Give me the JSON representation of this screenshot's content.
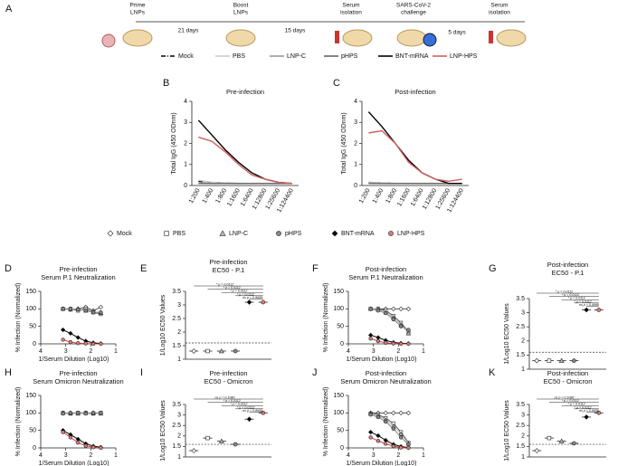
{
  "timeline": {
    "panel": "A",
    "steps": [
      {
        "label": [
          "Prime",
          "LNPs"
        ]
      },
      {
        "label": [
          "Boost",
          "LNPs"
        ]
      },
      {
        "label": [
          "Serum",
          "isolation"
        ]
      },
      {
        "label": [
          "SARS-CoV-2",
          "challenge"
        ]
      },
      {
        "label": [
          "Serum",
          "isolation"
        ]
      }
    ],
    "intervals": [
      "21 days",
      "15 days",
      "5 days"
    ]
  },
  "chart_data": [
    {
      "type": "line",
      "panel": "B",
      "title": "Pre-infection",
      "ylabel": "Total IgG (450 ODnm)",
      "legend": true,
      "categories": [
        "1:200",
        "1:400",
        "1:800",
        "1:1600",
        "1:6400",
        "1:12800",
        "1:25600",
        "1:124400"
      ],
      "ylim": [
        0,
        4
      ],
      "yticks": [
        0,
        1,
        2,
        3,
        4
      ],
      "series": [
        {
          "name": "Mock",
          "color": "#000000",
          "dash": "dashdot",
          "values": [
            0.2,
            0.15,
            0.12,
            0.1,
            0.1,
            0.1,
            0.1,
            0.1
          ]
        },
        {
          "name": "PBS",
          "color": "#cccccc",
          "values": [
            0.25,
            0.15,
            0.12,
            0.1,
            0.1,
            0.1,
            0.1,
            0.1
          ]
        },
        {
          "name": "LNP-C",
          "color": "#999999",
          "values": [
            0.12,
            0.1,
            0.1,
            0.1,
            0.1,
            0.1,
            0.1,
            0.1
          ]
        },
        {
          "name": "pHPS",
          "color": "#666666",
          "values": [
            0.1,
            0.1,
            0.1,
            0.1,
            0.1,
            0.1,
            0.1,
            0.1
          ]
        },
        {
          "name": "BNT-mRNA",
          "color": "#000000",
          "values": [
            3.1,
            2.4,
            1.7,
            1.1,
            0.6,
            0.3,
            0.15,
            0.1
          ]
        },
        {
          "name": "LNP-HPS",
          "color": "#d06060",
          "values": [
            2.3,
            2.1,
            1.6,
            1.0,
            0.5,
            0.3,
            0.15,
            0.1
          ]
        }
      ]
    },
    {
      "type": "line",
      "panel": "C",
      "title": "Post-infection",
      "ylabel": "Total IgG (450 ODnm)",
      "legend": false,
      "categories": [
        "1:200",
        "1:400",
        "1:800",
        "1:1600",
        "1:6400",
        "1:12800",
        "1:25600",
        "1:124400"
      ],
      "ylim": [
        0,
        4
      ],
      "yticks": [
        0,
        1,
        2,
        3,
        4
      ],
      "series": [
        {
          "color": "#000000",
          "dash": "dashdot",
          "values": [
            0.15,
            0.12,
            0.1,
            0.1,
            0.1,
            0.1,
            0.1,
            0.1
          ]
        },
        {
          "color": "#cccccc",
          "values": [
            0.15,
            0.12,
            0.1,
            0.1,
            0.1,
            0.1,
            0.1,
            0.1
          ]
        },
        {
          "color": "#999999",
          "values": [
            0.12,
            0.1,
            0.1,
            0.1,
            0.1,
            0.1,
            0.1,
            0.1
          ]
        },
        {
          "color": "#666666",
          "values": [
            0.1,
            0.1,
            0.1,
            0.1,
            0.1,
            0.1,
            0.1,
            0.1
          ]
        },
        {
          "color": "#000000",
          "values": [
            3.5,
            2.8,
            2.0,
            1.2,
            0.6,
            0.3,
            0.1,
            0.1
          ]
        },
        {
          "color": "#d06060",
          "values": [
            2.5,
            2.6,
            2.0,
            1.1,
            0.6,
            0.3,
            0.2,
            0.3
          ]
        }
      ]
    },
    {
      "type": "scatter",
      "panel": "D",
      "title": "Pre-infection",
      "subtitle": "Serum P.1 Neutralization",
      "xlabel": "1/Serum Dilution (Log10)",
      "ylabel": "% Infection (Normalized)",
      "legend": true,
      "x": [
        3.11,
        2.81,
        2.51,
        2.2,
        1.9,
        1.6
      ],
      "xlim": [
        4,
        1
      ],
      "xticks": [
        4,
        3,
        2,
        1
      ],
      "ylim": [
        0,
        150
      ],
      "yticks": [
        0,
        50,
        100,
        150
      ],
      "series": [
        {
          "name": "Mock",
          "color": "#ffffff",
          "marker": "diamond",
          "values": [
            100,
            98,
            100,
            105,
            95,
            105
          ]
        },
        {
          "name": "PBS",
          "color": "#ffffff",
          "marker": "square",
          "values": [
            100,
            100,
            95,
            100,
            90,
            85
          ]
        },
        {
          "name": "LNP-C",
          "color": "#bbbbbb",
          "marker": "triangle",
          "values": [
            100,
            98,
            100,
            95,
            92,
            88
          ]
        },
        {
          "name": "pHPS",
          "color": "#888888",
          "marker": "circle",
          "values": [
            100,
            100,
            98,
            95,
            90,
            90
          ]
        },
        {
          "name": "BNT-mRNA",
          "color": "#000000",
          "marker": "diamond",
          "values": [
            40,
            30,
            18,
            8,
            3,
            1
          ]
        },
        {
          "name": "LNP-HPS",
          "color": "#e07a7a",
          "marker": "circle",
          "values": [
            12,
            5,
            2,
            1,
            0,
            0
          ]
        }
      ]
    },
    {
      "type": "strip",
      "panel": "E",
      "title": "Pre-infection",
      "subtitle": "EC50 - P.1",
      "ylabel": "1/Log10 EC50 Values",
      "ylim": [
        1,
        3.5
      ],
      "yticks": [
        1,
        1.5,
        2,
        2.5,
        3,
        3.5
      ],
      "threshold": 1.6,
      "annotations": [
        "* p = 0.0112",
        "* p = 0.0112",
        "* p = 0.0112",
        "* p = 0.0112",
        "ns p = 0.9999"
      ],
      "series": [
        {
          "color": "#ffffff",
          "marker": "diamond",
          "values": [
            1.3
          ]
        },
        {
          "color": "#ffffff",
          "marker": "square",
          "values": [
            1.3
          ]
        },
        {
          "color": "#bbbbbb",
          "marker": "triangle",
          "values": [
            1.3
          ]
        },
        {
          "color": "#888888",
          "marker": "circle",
          "values": [
            1.3
          ]
        },
        {
          "color": "#000000",
          "marker": "diamond",
          "values": [
            3.1
          ]
        },
        {
          "color": "#e07a7a",
          "marker": "circle",
          "values": [
            3.1
          ]
        }
      ]
    },
    {
      "type": "scatter",
      "panel": "F",
      "title": "Post-infection",
      "subtitle": "Serum P.1 Neutralization",
      "xlabel": "1/Serum Dilution (Log10)",
      "ylabel": "% Infection (Normalized)",
      "legend": false,
      "x": [
        3.11,
        2.81,
        2.51,
        2.2,
        1.9,
        1.6
      ],
      "xlim": [
        4,
        1
      ],
      "xticks": [
        4,
        3,
        2,
        1
      ],
      "ylim": [
        0,
        150
      ],
      "yticks": [
        0,
        50,
        100,
        150
      ],
      "series": [
        {
          "color": "#ffffff",
          "marker": "diamond",
          "values": [
            100,
            100,
            100,
            100,
            100,
            100
          ]
        },
        {
          "color": "#ffffff",
          "marker": "square",
          "values": [
            100,
            100,
            95,
            80,
            60,
            35
          ]
        },
        {
          "color": "#bbbbbb",
          "marker": "triangle",
          "values": [
            100,
            98,
            90,
            75,
            55,
            30
          ]
        },
        {
          "color": "#888888",
          "marker": "circle",
          "values": [
            100,
            95,
            88,
            70,
            50,
            40
          ]
        },
        {
          "color": "#000000",
          "marker": "diamond",
          "values": [
            25,
            18,
            10,
            4,
            2,
            1
          ]
        },
        {
          "color": "#e07a7a",
          "marker": "circle",
          "values": [
            15,
            8,
            3,
            1,
            0,
            0
          ]
        }
      ]
    },
    {
      "type": "strip",
      "panel": "G",
      "title": "Post-infection",
      "subtitle": "EC50 - P.1",
      "ylabel": "1/Log10 EC50 Values",
      "ylim": [
        1,
        3.5
      ],
      "yticks": [
        1,
        1.5,
        2,
        2.5,
        3,
        3.5
      ],
      "threshold": 1.6,
      "annotations": [
        "* p = 0.0112",
        "* p = 0.0112",
        "* p = 0.0112",
        "* p = 0.0112",
        "ns p = 0.9999"
      ],
      "series": [
        {
          "color": "#ffffff",
          "marker": "diamond",
          "values": [
            1.3
          ]
        },
        {
          "color": "#ffffff",
          "marker": "square",
          "values": [
            1.3
          ]
        },
        {
          "color": "#bbbbbb",
          "marker": "triangle",
          "values": [
            1.3
          ]
        },
        {
          "color": "#888888",
          "marker": "circle",
          "values": [
            1.3
          ]
        },
        {
          "color": "#000000",
          "marker": "diamond",
          "values": [
            3.1
          ]
        },
        {
          "color": "#e07a7a",
          "marker": "circle",
          "values": [
            3.1
          ]
        }
      ]
    },
    {
      "type": "scatter",
      "panel": "H",
      "title": "Pre-infection",
      "subtitle": "Serum Omicron Neutralization",
      "xlabel": "1/Serum Dilution (Log10)",
      "ylabel": "% Infection (Normalized)",
      "legend": false,
      "x": [
        3.11,
        2.81,
        2.51,
        2.2,
        1.9,
        1.6
      ],
      "xlim": [
        4,
        1
      ],
      "xticks": [
        4,
        3,
        2,
        1
      ],
      "ylim": [
        0,
        150
      ],
      "yticks": [
        0,
        50,
        100,
        150
      ],
      "series": [
        {
          "color": "#ffffff",
          "marker": "diamond",
          "values": [
            100,
            100,
            100,
            100,
            100,
            100
          ]
        },
        {
          "color": "#ffffff",
          "marker": "square",
          "values": [
            100,
            98,
            100,
            100,
            98,
            100
          ]
        },
        {
          "color": "#bbbbbb",
          "marker": "triangle",
          "values": [
            100,
            100,
            98,
            100,
            100,
            98
          ]
        },
        {
          "color": "#888888",
          "marker": "circle",
          "values": [
            98,
            100,
            100,
            98,
            100,
            100
          ]
        },
        {
          "color": "#000000",
          "marker": "diamond",
          "values": [
            50,
            38,
            25,
            12,
            5,
            2
          ]
        },
        {
          "color": "#e07a7a",
          "marker": "circle",
          "values": [
            45,
            30,
            15,
            6,
            2,
            0
          ]
        }
      ]
    },
    {
      "type": "strip",
      "panel": "I",
      "title": "Pre-infection",
      "subtitle": "EC50 - Omicron",
      "ylabel": "1/Log10 EC50 Values",
      "ylim": [
        1,
        3.5
      ],
      "yticks": [
        1,
        1.5,
        2,
        2.5,
        3,
        3.5
      ],
      "threshold": 1.6,
      "annotations": [
        "ns p = 0.1080",
        "* p = 0.0112",
        "* p = 0.0112",
        "* p = 0.0112",
        "ns p = 0.8658"
      ],
      "series": [
        {
          "color": "#ffffff",
          "marker": "diamond",
          "values": [
            1.3
          ]
        },
        {
          "color": "#ffffff",
          "marker": "square",
          "values": [
            1.9
          ]
        },
        {
          "color": "#bbbbbb",
          "marker": "triangle",
          "values": [
            1.75
          ]
        },
        {
          "color": "#888888",
          "marker": "circle",
          "values": [
            1.6
          ]
        },
        {
          "color": "#000000",
          "marker": "diamond",
          "values": [
            2.8
          ]
        },
        {
          "color": "#e07a7a",
          "marker": "circle",
          "values": [
            3.1
          ]
        }
      ]
    },
    {
      "type": "scatter",
      "panel": "J",
      "title": "Post-infection",
      "subtitle": "Serum Omicron Neutralization",
      "xlabel": "1/Serum Dilution (Log10)",
      "ylabel": "% Infection (Normalized)",
      "legend": false,
      "x": [
        3.11,
        2.81,
        2.51,
        2.2,
        1.9,
        1.6
      ],
      "xlim": [
        4,
        1
      ],
      "xticks": [
        4,
        3,
        2,
        1
      ],
      "ylim": [
        0,
        150
      ],
      "yticks": [
        0,
        50,
        100,
        150
      ],
      "series": [
        {
          "color": "#ffffff",
          "marker": "diamond",
          "values": [
            100,
            100,
            100,
            100,
            100,
            100
          ]
        },
        {
          "color": "#ffffff",
          "marker": "square",
          "values": [
            98,
            95,
            85,
            70,
            45,
            15
          ]
        },
        {
          "color": "#bbbbbb",
          "marker": "triangle",
          "values": [
            98,
            92,
            80,
            62,
            40,
            12
          ]
        },
        {
          "color": "#888888",
          "marker": "circle",
          "values": [
            95,
            88,
            75,
            55,
            30,
            10
          ]
        },
        {
          "color": "#000000",
          "marker": "diamond",
          "values": [
            45,
            35,
            22,
            10,
            4,
            1
          ]
        },
        {
          "color": "#e07a7a",
          "marker": "circle",
          "values": [
            30,
            20,
            12,
            5,
            1,
            0
          ]
        }
      ]
    },
    {
      "type": "strip",
      "panel": "K",
      "title": "Post-infection",
      "subtitle": "EC50 - Omicron",
      "ylabel": "1/Log10 EC50 Values",
      "ylim": [
        1,
        3.5
      ],
      "yticks": [
        1,
        1.5,
        2,
        2.5,
        3,
        3.5
      ],
      "threshold": 1.6,
      "annotations": [
        "ns p = 0.1080",
        "* p = 0.0112",
        "* p = 0.0112",
        "* p = 0.0112",
        "ns p = 0.8658"
      ],
      "series": [
        {
          "color": "#ffffff",
          "marker": "diamond",
          "values": [
            1.3
          ]
        },
        {
          "color": "#ffffff",
          "marker": "square",
          "values": [
            1.9
          ]
        },
        {
          "color": "#bbbbbb",
          "marker": "triangle",
          "values": [
            1.75
          ]
        },
        {
          "color": "#888888",
          "marker": "circle",
          "values": [
            1.65
          ]
        },
        {
          "color": "#000000",
          "marker": "diamond",
          "values": [
            2.9
          ]
        },
        {
          "color": "#e07a7a",
          "marker": "circle",
          "values": [
            3.1
          ]
        }
      ]
    }
  ]
}
